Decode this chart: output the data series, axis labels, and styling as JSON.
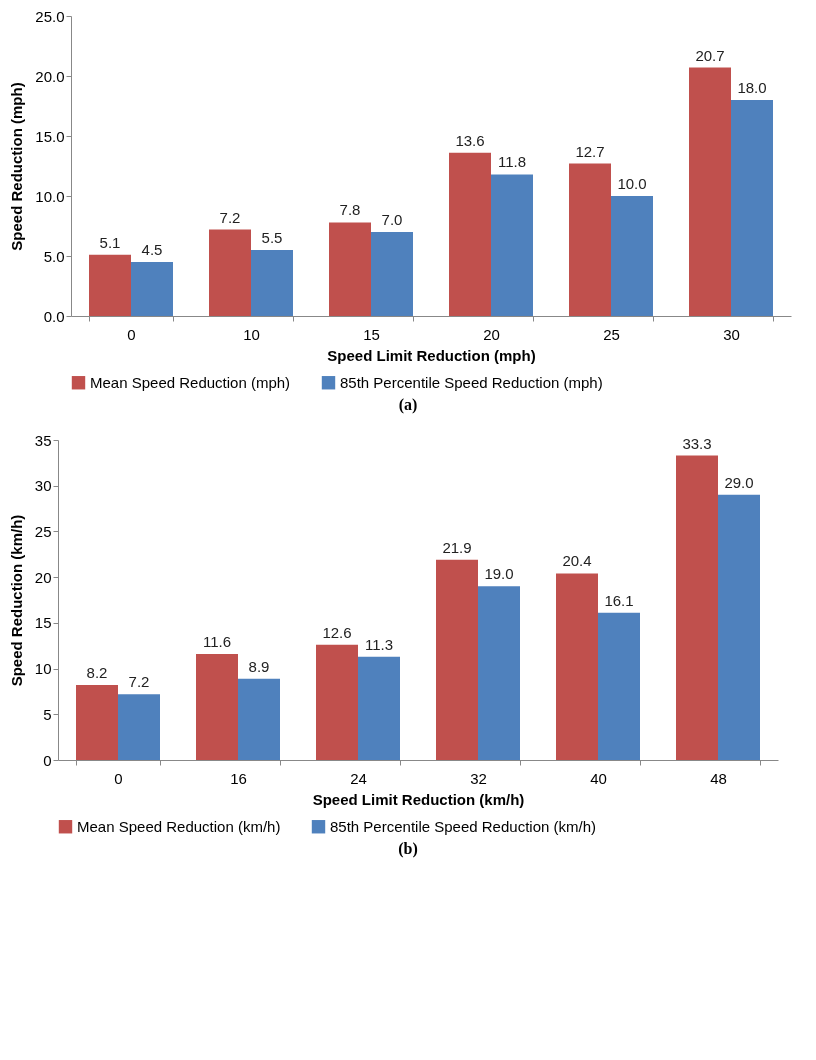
{
  "chart_data": [
    {
      "type": "bar",
      "xlabel": "Speed Limit Reduction (mph)",
      "ylabel": "Speed Reduction (mph)",
      "categories": [
        "0",
        "10",
        "15",
        "20",
        "25",
        "30"
      ],
      "series": [
        {
          "name": "Mean Speed Reduction (mph)",
          "color": "#c0504d",
          "values": [
            5.1,
            7.2,
            7.8,
            13.6,
            12.7,
            20.7
          ],
          "value_labels": [
            "5.1",
            "7.2",
            "7.8",
            "13.6",
            "12.7",
            "20.7"
          ]
        },
        {
          "name": "85th Percentile Speed Reduction (mph)",
          "color": "#4f81bd",
          "values": [
            4.5,
            5.5,
            7.0,
            11.8,
            10.0,
            18.0
          ],
          "value_labels": [
            "4.5",
            "5.5",
            "7.0",
            "11.8",
            "10.0",
            "18.0"
          ]
        }
      ],
      "ylim": [
        0,
        25
      ],
      "yticks": [
        {
          "value": 0,
          "label": "0.0"
        },
        {
          "value": 5,
          "label": "5.0"
        },
        {
          "value": 10,
          "label": "10.0"
        },
        {
          "value": 15,
          "label": "15.0"
        },
        {
          "value": 20,
          "label": "20.0"
        },
        {
          "value": 25,
          "label": "25.0"
        }
      ],
      "legend": "bottom",
      "annotations": [
        "(a)"
      ]
    },
    {
      "type": "bar",
      "xlabel": "Speed Limit Reduction (km/h)",
      "ylabel": "Speed Reduction (km/h)",
      "categories": [
        "0",
        "16",
        "24",
        "32",
        "40",
        "48"
      ],
      "series": [
        {
          "name": "Mean Speed Reduction (km/h)",
          "color": "#c0504d",
          "values": [
            8.2,
            11.6,
            12.6,
            21.9,
            20.4,
            33.3
          ],
          "value_labels": [
            "8.2",
            "11.6",
            "12.6",
            "21.9",
            "20.4",
            "33.3"
          ]
        },
        {
          "name": "85th Percentile Speed Reduction (km/h)",
          "color": "#4f81bd",
          "values": [
            7.2,
            8.9,
            11.3,
            19.0,
            16.1,
            29.0
          ],
          "value_labels": [
            "7.2",
            "8.9",
            "11.3",
            "19.0",
            "16.1",
            "29.0"
          ]
        }
      ],
      "ylim": [
        0,
        35
      ],
      "yticks": [
        0,
        5,
        10,
        15,
        20,
        25,
        30,
        35
      ],
      "legend": "bottom",
      "annotations": [
        "(b)"
      ]
    }
  ]
}
